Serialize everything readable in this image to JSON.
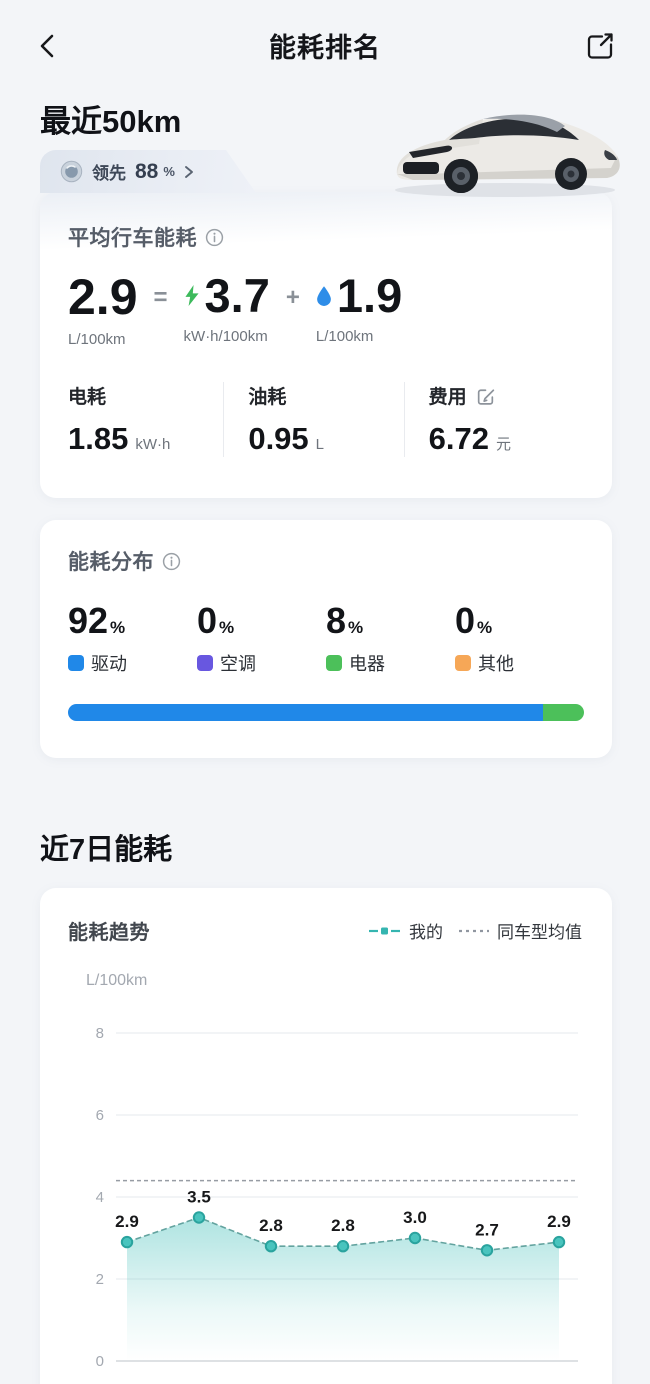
{
  "header": {
    "title": "能耗排名"
  },
  "recent": {
    "heading": "最近50km",
    "badge_label": "领先",
    "badge_value": "88",
    "badge_unit": "%"
  },
  "avg_section": {
    "title": "平均行车能耗",
    "total_value": "2.9",
    "total_unit": "L/100km",
    "equals": "=",
    "electric_value": "3.7",
    "electric_unit": "kW·h/100km",
    "plus": "+",
    "fuel_value": "1.9",
    "fuel_unit": "L/100km"
  },
  "stats": [
    {
      "label": "电耗",
      "value": "1.85",
      "unit": "kW·h"
    },
    {
      "label": "油耗",
      "value": "0.95",
      "unit": "L"
    },
    {
      "label": "费用",
      "value": "6.72",
      "unit": "元"
    }
  ],
  "distribution": {
    "title": "能耗分布",
    "items": [
      {
        "pct": "92",
        "unit": "%",
        "label": "驱动",
        "color": "#2088e8"
      },
      {
        "pct": "0",
        "unit": "%",
        "label": "空调",
        "color": "#6857e0"
      },
      {
        "pct": "8",
        "unit": "%",
        "label": "电器",
        "color": "#4cc05a"
      },
      {
        "pct": "0",
        "unit": "%",
        "label": "其他",
        "color": "#f6a757"
      }
    ],
    "bar_segments": [
      {
        "color": "#2088e8",
        "pct": 92
      },
      {
        "color": "#4cc05a",
        "pct": 8
      }
    ]
  },
  "weekly_heading": "近7日能耗",
  "chart_data": {
    "type": "line",
    "title": "能耗趋势",
    "ylabel": "L/100km",
    "y_ticks": [
      8,
      6,
      4,
      2,
      0
    ],
    "ylim": [
      0,
      8
    ],
    "grid": true,
    "legend_position": "top-right",
    "series": [
      {
        "name": "我的",
        "values": [
          2.9,
          3.5,
          2.8,
          2.8,
          3.0,
          2.7,
          2.9
        ],
        "color": "#35b5b0",
        "line_color": "#63a39f",
        "style": "dashed-with-square-dots",
        "area_fill": true,
        "last_label_color": "#2fb5b0"
      },
      {
        "name": "同车型均值",
        "type": "constant",
        "value": 4.4,
        "color": "#979ca4",
        "style": "dashed"
      }
    ]
  },
  "colors": {
    "accent_blue": "#2088e8",
    "bolt_green": "#3dba5c",
    "drop_blue": "#2e8de8",
    "teal": "#35b5b0"
  }
}
